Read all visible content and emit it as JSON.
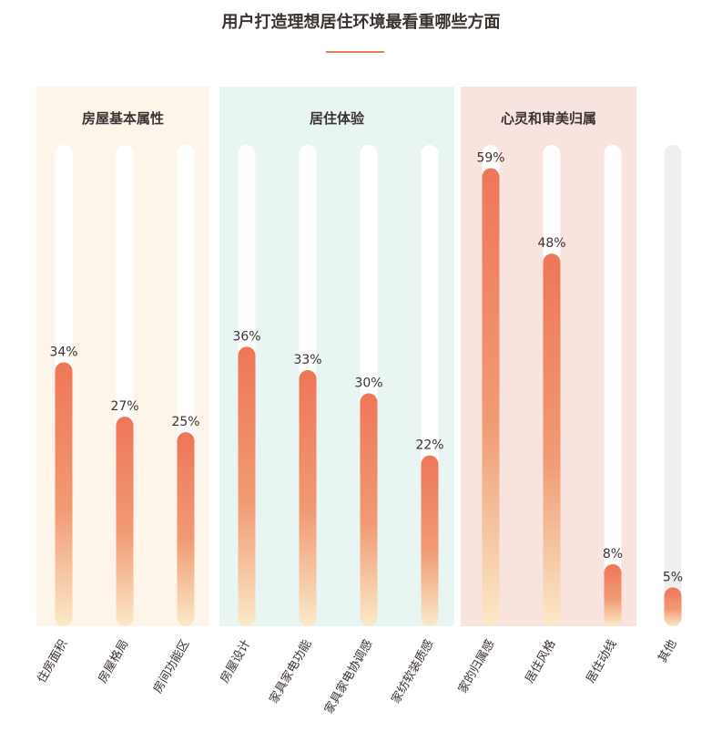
{
  "chart_data": {
    "type": "bar",
    "title": "用户打造理想居住环境最看重哪些方面",
    "categories": [
      "住房面积",
      "房屋格局",
      "房间功能区",
      "房屋设计",
      "家具家电功能",
      "家具家电协调感",
      "家纺软装质感",
      "家的归属感",
      "居住风格",
      "居住动线",
      "其他"
    ],
    "values": [
      34,
      27,
      25,
      36,
      33,
      30,
      22,
      59,
      48,
      8,
      5
    ],
    "value_labels": [
      "34%",
      "27%",
      "25%",
      "36%",
      "33%",
      "30%",
      "22%",
      "59%",
      "48%",
      "8%",
      "5%"
    ],
    "ylim": [
      0,
      62
    ],
    "groups": [
      {
        "name": "房屋基本属性",
        "color": "#fdf5ea"
      },
      {
        "name": "居住体验",
        "color": "#e9f5f3"
      },
      {
        "name": "心灵和审美归属",
        "color": "#f9e3de"
      }
    ],
    "colors": {
      "bar_top": "#ee7659",
      "bar_mid": "#f09a74",
      "bar_bottom": "#fbe9c8",
      "track": "#ffffff",
      "track_other": "#f0efef",
      "accent": "#ea7a5e"
    }
  }
}
